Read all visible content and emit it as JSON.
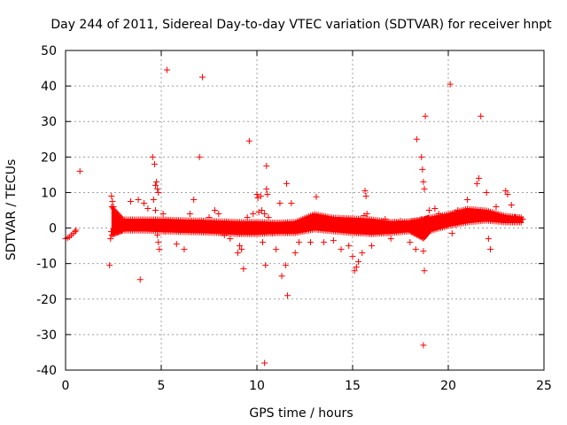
{
  "chart_data": {
    "type": "scatter",
    "title": "Day 244 of 2011, Sidereal Day-to-day VTEC variation (SDTVAR) for receiver hnpt",
    "xlabel": "GPS time / hours",
    "ylabel": "SDTVAR / TECUs",
    "xlim": [
      0,
      25
    ],
    "ylim": [
      -40,
      50
    ],
    "xticks": [
      0,
      5,
      10,
      15,
      20,
      25
    ],
    "yticks": [
      -40,
      -30,
      -20,
      -10,
      0,
      10,
      20,
      30,
      40,
      50
    ],
    "grid": true,
    "marker": "+",
    "color": "#ff0000",
    "band": {
      "name": "main-trace",
      "x": [
        2.4,
        3,
        4,
        5,
        6,
        7,
        8,
        9,
        10,
        11,
        12,
        13,
        14,
        15,
        16,
        17,
        18,
        18.7,
        19,
        20,
        21,
        22,
        23,
        23.9
      ],
      "upper": [
        6,
        2.5,
        2.5,
        2.5,
        2.3,
        2.2,
        2,
        1.8,
        1.8,
        1.6,
        1.8,
        4,
        3,
        2.8,
        2.5,
        1.8,
        2,
        2.5,
        3,
        4,
        5.5,
        5,
        3.5,
        3
      ],
      "lower": [
        -2,
        -0.8,
        -0.8,
        -1,
        -1.2,
        -1.3,
        -1.5,
        -1.8,
        -1.8,
        -1.5,
        -1.5,
        -0.5,
        -1,
        -1.5,
        -1.8,
        -1.5,
        -1,
        -3,
        -1,
        0.5,
        1.5,
        2,
        1.5,
        1.5
      ]
    },
    "points": [
      {
        "x": 0.0,
        "y": -3.0
      },
      {
        "x": 0.1,
        "y": -2.8
      },
      {
        "x": 0.2,
        "y": -2.5
      },
      {
        "x": 0.3,
        "y": -2.0
      },
      {
        "x": 0.4,
        "y": -1.5
      },
      {
        "x": 0.5,
        "y": -1.0
      },
      {
        "x": 0.55,
        "y": -0.6
      },
      {
        "x": 0.75,
        "y": 16.0
      },
      {
        "x": 2.3,
        "y": -10.5
      },
      {
        "x": 2.35,
        "y": -3.0
      },
      {
        "x": 2.38,
        "y": -1.0
      },
      {
        "x": 2.4,
        "y": 9.0
      },
      {
        "x": 2.45,
        "y": 7.5
      },
      {
        "x": 2.5,
        "y": 6.0
      },
      {
        "x": 3.4,
        "y": 7.5
      },
      {
        "x": 3.9,
        "y": -14.5
      },
      {
        "x": 3.8,
        "y": 8.0
      },
      {
        "x": 4.1,
        "y": 7.0
      },
      {
        "x": 4.3,
        "y": 5.5
      },
      {
        "x": 4.55,
        "y": 20.0
      },
      {
        "x": 4.65,
        "y": 18.0
      },
      {
        "x": 4.7,
        "y": 12.0
      },
      {
        "x": 4.75,
        "y": 13.0
      },
      {
        "x": 4.8,
        "y": 11.0
      },
      {
        "x": 4.85,
        "y": 10.0
      },
      {
        "x": 4.6,
        "y": 8.0
      },
      {
        "x": 4.7,
        "y": 5.0
      },
      {
        "x": 4.8,
        "y": -2.0
      },
      {
        "x": 4.85,
        "y": -4.0
      },
      {
        "x": 4.9,
        "y": -6.0
      },
      {
        "x": 5.1,
        "y": 4.0
      },
      {
        "x": 5.2,
        "y": -1.0
      },
      {
        "x": 5.3,
        "y": 44.5
      },
      {
        "x": 5.8,
        "y": -4.5
      },
      {
        "x": 6.2,
        "y": -6.0
      },
      {
        "x": 6.5,
        "y": 4.0
      },
      {
        "x": 6.7,
        "y": 8.0
      },
      {
        "x": 7.0,
        "y": 20.0
      },
      {
        "x": 7.15,
        "y": 42.5
      },
      {
        "x": 7.5,
        "y": 3.0
      },
      {
        "x": 7.8,
        "y": 5.0
      },
      {
        "x": 8.0,
        "y": 4.0
      },
      {
        "x": 8.3,
        "y": -2.0
      },
      {
        "x": 8.6,
        "y": -3.0
      },
      {
        "x": 8.9,
        "y": 1.0
      },
      {
        "x": 9.0,
        "y": -7.0
      },
      {
        "x": 9.1,
        "y": -5.0
      },
      {
        "x": 9.2,
        "y": -6.0
      },
      {
        "x": 9.3,
        "y": -11.5
      },
      {
        "x": 9.5,
        "y": 3.0
      },
      {
        "x": 9.6,
        "y": 24.5
      },
      {
        "x": 9.8,
        "y": 4.0
      },
      {
        "x": 10.0,
        "y": 9.5
      },
      {
        "x": 10.05,
        "y": 8.5
      },
      {
        "x": 10.1,
        "y": 4.5
      },
      {
        "x": 10.2,
        "y": 9.0
      },
      {
        "x": 10.25,
        "y": 5.0
      },
      {
        "x": 10.3,
        "y": -4.0
      },
      {
        "x": 10.4,
        "y": 4.0
      },
      {
        "x": 10.5,
        "y": 17.5
      },
      {
        "x": 10.5,
        "y": 11.0
      },
      {
        "x": 10.55,
        "y": 9.5
      },
      {
        "x": 10.45,
        "y": -10.5
      },
      {
        "x": 10.4,
        "y": -38.0
      },
      {
        "x": 10.6,
        "y": 3.0
      },
      {
        "x": 10.8,
        "y": -1.5
      },
      {
        "x": 11.0,
        "y": -6.0
      },
      {
        "x": 11.2,
        "y": 7.0
      },
      {
        "x": 11.3,
        "y": -13.5
      },
      {
        "x": 11.5,
        "y": -10.5
      },
      {
        "x": 11.55,
        "y": 12.5
      },
      {
        "x": 11.6,
        "y": -19.0
      },
      {
        "x": 11.8,
        "y": 7.0
      },
      {
        "x": 12.0,
        "y": -7.0
      },
      {
        "x": 12.2,
        "y": -4.0
      },
      {
        "x": 12.8,
        "y": -4.0
      },
      {
        "x": 13.1,
        "y": 8.8
      },
      {
        "x": 13.5,
        "y": -4.0
      },
      {
        "x": 14.0,
        "y": -3.5
      },
      {
        "x": 14.4,
        "y": -6.0
      },
      {
        "x": 14.8,
        "y": -5.0
      },
      {
        "x": 15.0,
        "y": -8.0
      },
      {
        "x": 15.1,
        "y": -12.0
      },
      {
        "x": 15.2,
        "y": -11.0
      },
      {
        "x": 15.3,
        "y": -9.5
      },
      {
        "x": 15.5,
        "y": -7.0
      },
      {
        "x": 15.6,
        "y": 3.5
      },
      {
        "x": 15.65,
        "y": 10.5
      },
      {
        "x": 15.7,
        "y": 9.0
      },
      {
        "x": 15.75,
        "y": 4.0
      },
      {
        "x": 16.0,
        "y": -5.0
      },
      {
        "x": 16.3,
        "y": 0.5
      },
      {
        "x": 16.7,
        "y": 2.5
      },
      {
        "x": 17.0,
        "y": -3.0
      },
      {
        "x": 17.5,
        "y": 2.0
      },
      {
        "x": 18.0,
        "y": -4.0
      },
      {
        "x": 18.3,
        "y": -6.0
      },
      {
        "x": 18.35,
        "y": 25.0
      },
      {
        "x": 18.6,
        "y": 20.0
      },
      {
        "x": 18.65,
        "y": 16.5
      },
      {
        "x": 18.7,
        "y": 13.0
      },
      {
        "x": 18.75,
        "y": 11.0
      },
      {
        "x": 18.8,
        "y": 31.5
      },
      {
        "x": 18.6,
        "y": 2.5
      },
      {
        "x": 18.7,
        "y": -6.5
      },
      {
        "x": 18.75,
        "y": -12.0
      },
      {
        "x": 18.7,
        "y": -33.0
      },
      {
        "x": 19.0,
        "y": 5.0
      },
      {
        "x": 19.3,
        "y": 5.5
      },
      {
        "x": 19.5,
        "y": 4.0
      },
      {
        "x": 20.1,
        "y": 40.5
      },
      {
        "x": 20.2,
        "y": -1.5
      },
      {
        "x": 20.5,
        "y": 5.0
      },
      {
        "x": 21.0,
        "y": 8.0
      },
      {
        "x": 21.5,
        "y": 12.5
      },
      {
        "x": 21.7,
        "y": 31.5
      },
      {
        "x": 21.6,
        "y": 14.0
      },
      {
        "x": 22.0,
        "y": 10.0
      },
      {
        "x": 22.1,
        "y": -3.0
      },
      {
        "x": 22.2,
        "y": -6.0
      },
      {
        "x": 22.5,
        "y": 6.0
      },
      {
        "x": 23.0,
        "y": 10.5
      },
      {
        "x": 23.1,
        "y": 9.5
      },
      {
        "x": 23.3,
        "y": 6.5
      },
      {
        "x": 23.5,
        "y": 3.0
      },
      {
        "x": 23.9,
        "y": 2.5
      }
    ]
  }
}
